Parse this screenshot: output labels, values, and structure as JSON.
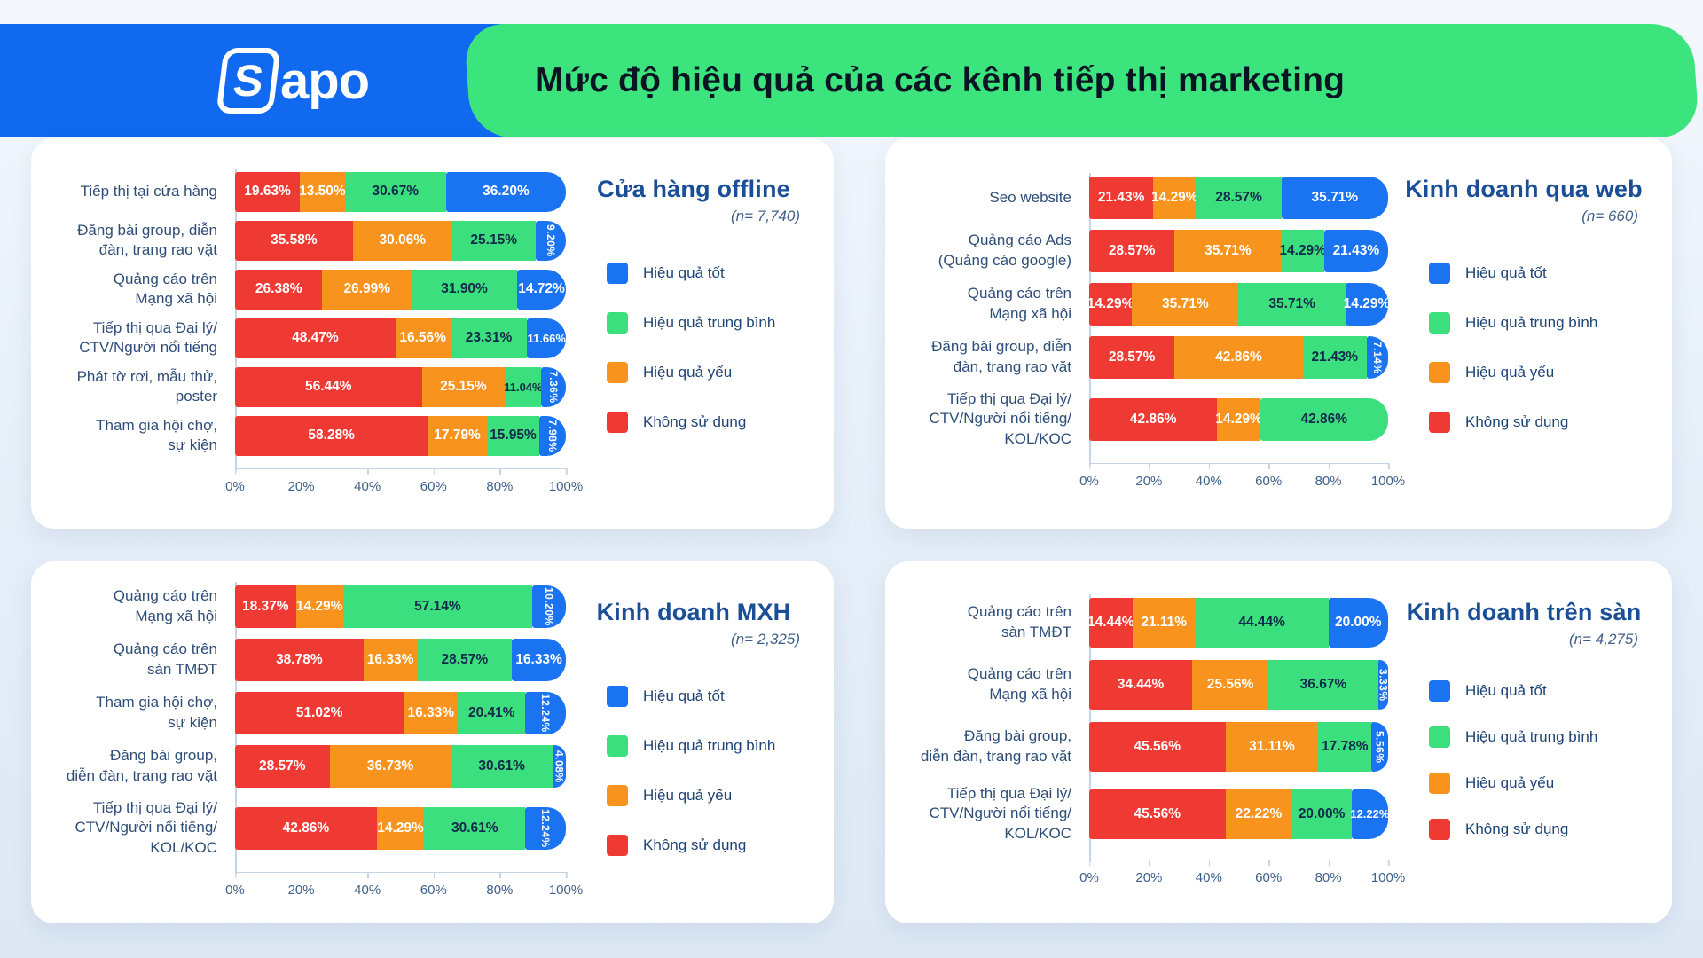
{
  "header": {
    "logo": "Sapo",
    "title": "Mức độ hiệu quả của các kênh tiếp thị marketing"
  },
  "colors": {
    "good": "#1A73F0",
    "medium": "#3CDF7D",
    "weak": "#F8941D",
    "none": "#EF3A34",
    "header_blue": "#1169F0",
    "header_green": "#3CE47E",
    "panel_title": "#1A4E96"
  },
  "legend": [
    {
      "label": "Hiệu quả tốt",
      "color": "#1A73F0"
    },
    {
      "label": "Hiệu quả trung bình",
      "color": "#3CDF7D"
    },
    {
      "label": "Hiệu quả yếu",
      "color": "#F8941D"
    },
    {
      "label": "Không sử dụng",
      "color": "#EF3A34"
    }
  ],
  "chart_data": [
    {
      "type": "bar",
      "subtype": "horizontal-stacked",
      "title": "Cửa hàng offline",
      "n_label": "(n= 7,740)",
      "series_order": [
        "Không sử dụng",
        "Hiệu quả yếu",
        "Hiệu quả trung bình",
        "Hiệu quả tốt"
      ],
      "xlim": [
        0,
        100
      ],
      "x_ticks": [
        "0%",
        "20%",
        "40%",
        "60%",
        "80%",
        "100%"
      ],
      "rows": [
        {
          "category": "Tiếp thị tại cửa hàng",
          "values": [
            19.63,
            13.5,
            30.67,
            36.2
          ],
          "labels": [
            "19.63%",
            "13.50%",
            "30.67%",
            "36.20%"
          ],
          "vertical": []
        },
        {
          "category": "Đăng bài group, diễn\nđàn, trang rao vặt",
          "values": [
            35.58,
            30.06,
            25.15,
            9.2
          ],
          "labels": [
            "35.58%",
            "30.06%",
            "25.15%",
            "9.20%"
          ],
          "vertical": [
            3
          ]
        },
        {
          "category": "Quảng cáo trên\nMạng xã hội",
          "values": [
            26.38,
            26.99,
            31.9,
            14.72
          ],
          "labels": [
            "26.38%",
            "26.99%",
            "31.90%",
            "14.72%"
          ],
          "vertical": []
        },
        {
          "category": "Tiếp thị qua Đại lý/\nCTV/Người nổi tiếng",
          "values": [
            48.47,
            16.56,
            23.31,
            11.66
          ],
          "labels": [
            "48.47%",
            "16.56%",
            "23.31%",
            "11.66%"
          ],
          "vertical": []
        },
        {
          "category": "Phát tờ rơi, mẫu thử,\nposter",
          "values": [
            56.44,
            25.15,
            11.04,
            7.36
          ],
          "labels": [
            "56.44%",
            "25.15%",
            "11.04%",
            "7.36%"
          ],
          "vertical": [
            3
          ]
        },
        {
          "category": "Tham gia hội chợ,\nsự kiện",
          "values": [
            58.28,
            17.79,
            15.95,
            7.98
          ],
          "labels": [
            "58.28%",
            "17.79%",
            "15.95%",
            "7.98%"
          ],
          "vertical": [
            3
          ]
        }
      ]
    },
    {
      "type": "bar",
      "subtype": "horizontal-stacked",
      "title": "Kinh doanh qua web",
      "n_label": "(n= 660)",
      "series_order": [
        "Không sử dụng",
        "Hiệu quả yếu",
        "Hiệu quả trung bình",
        "Hiệu quả tốt"
      ],
      "xlim": [
        0,
        100
      ],
      "x_ticks": [
        "0%",
        "20%",
        "40%",
        "60%",
        "80%",
        "100%"
      ],
      "rows": [
        {
          "category": "Seo website",
          "values": [
            21.43,
            14.29,
            28.57,
            35.71
          ],
          "labels": [
            "21.43%",
            "14.29%",
            "28.57%",
            "35.71%"
          ],
          "vertical": []
        },
        {
          "category": "Quảng cáo Ads\n(Quảng cáo google)",
          "values": [
            28.57,
            35.71,
            14.29,
            21.43
          ],
          "labels": [
            "28.57%",
            "35.71%",
            "14.29%",
            "21.43%"
          ],
          "vertical": []
        },
        {
          "category": "Quảng cáo trên\nMạng xã hội",
          "values": [
            14.29,
            35.71,
            35.71,
            14.29
          ],
          "labels": [
            "14.29%",
            "35.71%",
            "35.71%",
            "14.29%"
          ],
          "vertical": []
        },
        {
          "category": "Đăng bài group, diễn\nđàn, trang rao vặt",
          "values": [
            28.57,
            42.86,
            21.43,
            7.14
          ],
          "labels": [
            "28.57%",
            "42.86%",
            "21.43%",
            "7.14%"
          ],
          "vertical": [
            3
          ]
        },
        {
          "category": "Tiếp thị qua Đại lý/\nCTV/Người nổi tiếng/\nKOL/KOC",
          "values": [
            42.86,
            14.29,
            42.86,
            0
          ],
          "labels": [
            "42.86%",
            "14.29%",
            "42.86%",
            ""
          ],
          "vertical": []
        }
      ]
    },
    {
      "type": "bar",
      "subtype": "horizontal-stacked",
      "title": "Kinh doanh MXH",
      "n_label": "(n= 2,325)",
      "series_order": [
        "Không sử dụng",
        "Hiệu quả yếu",
        "Hiệu quả trung bình",
        "Hiệu quả tốt"
      ],
      "xlim": [
        0,
        100
      ],
      "x_ticks": [
        "0%",
        "20%",
        "40%",
        "60%",
        "80%",
        "100%"
      ],
      "rows": [
        {
          "category": "Quảng cáo trên\nMạng xã hội",
          "values": [
            18.37,
            14.29,
            57.14,
            10.2
          ],
          "labels": [
            "18.37%",
            "14.29%",
            "57.14%",
            "10.20%"
          ],
          "vertical": [
            3
          ]
        },
        {
          "category": "Quảng cáo trên\nsàn TMĐT",
          "values": [
            38.78,
            16.33,
            28.57,
            16.33
          ],
          "labels": [
            "38.78%",
            "16.33%",
            "28.57%",
            "16.33%"
          ],
          "vertical": []
        },
        {
          "category": "Tham gia hội chợ,\nsự kiện",
          "values": [
            51.02,
            16.33,
            20.41,
            12.24
          ],
          "labels": [
            "51.02%",
            "16.33%",
            "20.41%",
            "12.24%"
          ],
          "vertical": [
            3
          ]
        },
        {
          "category": "Đăng bài group,\ndiễn đàn, trang rao vặt",
          "values": [
            28.57,
            36.73,
            30.61,
            4.08
          ],
          "labels": [
            "28.57%",
            "36.73%",
            "30.61%",
            "4.08%"
          ],
          "vertical": [
            3
          ]
        },
        {
          "category": "Tiếp thị qua Đại lý/\nCTV/Người nổi tiếng/\nKOL/KOC",
          "values": [
            42.86,
            14.29,
            30.61,
            12.24
          ],
          "labels": [
            "42.86%",
            "14.29%",
            "30.61%",
            "12.24%"
          ],
          "vertical": [
            3
          ]
        }
      ]
    },
    {
      "type": "bar",
      "subtype": "horizontal-stacked",
      "title": "Kinh doanh trên sàn",
      "n_label": "(n= 4,275)",
      "series_order": [
        "Không sử dụng",
        "Hiệu quả yếu",
        "Hiệu quả trung bình",
        "Hiệu quả tốt"
      ],
      "xlim": [
        0,
        100
      ],
      "x_ticks": [
        "0%",
        "20%",
        "40%",
        "60%",
        "80%",
        "100%"
      ],
      "rows": [
        {
          "category": "Quảng cáo trên\nsàn TMĐT",
          "values": [
            14.44,
            21.11,
            44.44,
            20.0
          ],
          "labels": [
            "14.44%",
            "21.11%",
            "44.44%",
            "20.00%"
          ],
          "vertical": []
        },
        {
          "category": "Quảng cáo trên\nMạng xã hội",
          "values": [
            34.44,
            25.56,
            36.67,
            3.33
          ],
          "labels": [
            "34.44%",
            "25.56%",
            "36.67%",
            "3.33%"
          ],
          "vertical": [
            3
          ]
        },
        {
          "category": "Đăng bài group,\ndiễn đàn, trang rao vặt",
          "values": [
            45.56,
            31.11,
            17.78,
            5.56
          ],
          "labels": [
            "45.56%",
            "31.11%",
            "17.78%",
            "5.56%"
          ],
          "vertical": [
            3
          ]
        },
        {
          "category": "Tiếp thị qua Đại lý/\nCTV/Người nổi tiếng/\nKOL/KOC",
          "values": [
            45.56,
            22.22,
            20.0,
            12.22
          ],
          "labels": [
            "45.56%",
            "22.22%",
            "20.00%",
            "12.22%"
          ],
          "vertical": []
        }
      ]
    }
  ]
}
